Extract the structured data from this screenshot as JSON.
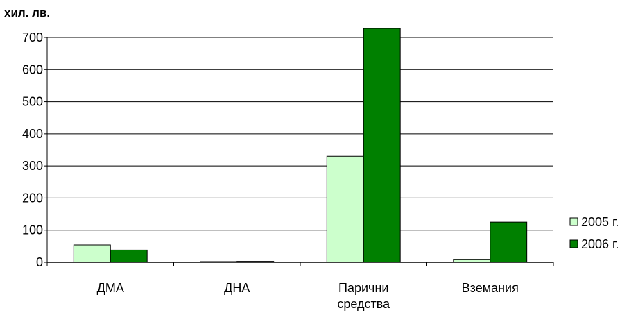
{
  "chart_data": {
    "type": "bar",
    "title": "",
    "ylabel": "хил. лв.",
    "xlabel": "",
    "categories": [
      "ДМА",
      "ДНА",
      "Парични средства",
      "Вземания"
    ],
    "category_lines": [
      [
        "ДМА"
      ],
      [
        "ДНА"
      ],
      [
        "Парични",
        "средства"
      ],
      [
        "Вземания"
      ]
    ],
    "series": [
      {
        "name": "2005 г.",
        "values": [
          54,
          2,
          330,
          8
        ],
        "color": "#ccffcc"
      },
      {
        "name": "2006 г.",
        "values": [
          38,
          3,
          728,
          125
        ],
        "color": "#008000"
      }
    ],
    "ylim": [
      0,
      700
    ],
    "yticks": [
      0,
      100,
      200,
      300,
      400,
      500,
      600,
      700
    ],
    "grid": true,
    "legend_position": "right"
  }
}
